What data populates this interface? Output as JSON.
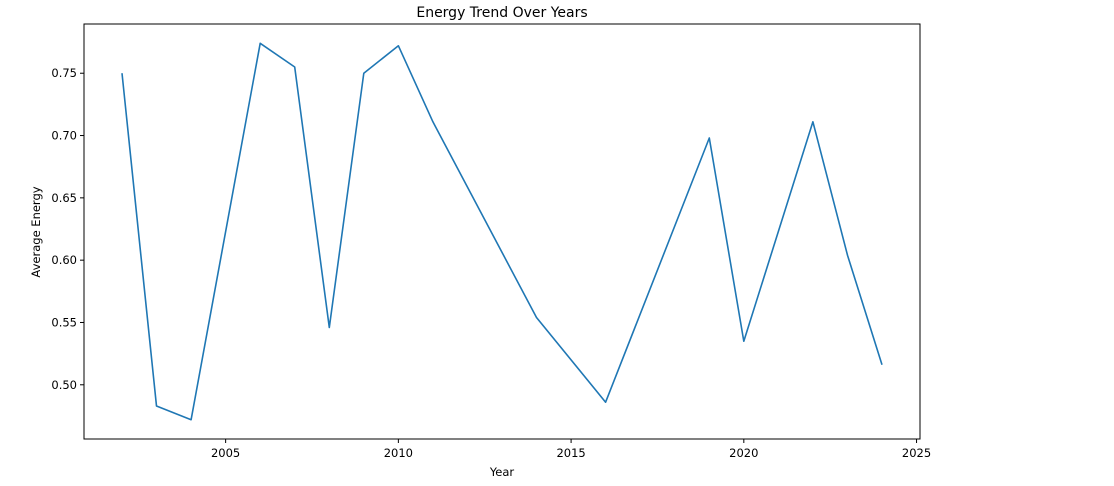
{
  "chart_data": {
    "type": "line",
    "title": "Energy Trend Over Years",
    "xlabel": "Year",
    "ylabel": "Average Energy",
    "xlim": [
      2000.9,
      2025.1
    ],
    "ylim": [
      0.4565,
      0.7895
    ],
    "x_ticks": [
      2005,
      2010,
      2015,
      2020,
      2025
    ],
    "y_ticks": [
      0.5,
      0.55,
      0.6,
      0.65,
      0.7,
      0.75
    ],
    "x_tick_labels": [
      "2005",
      "2010",
      "2015",
      "2020",
      "2025"
    ],
    "y_tick_labels": [
      "0.50",
      "0.55",
      "0.60",
      "0.65",
      "0.70",
      "0.75"
    ],
    "grid": false,
    "legend": "none",
    "series": [
      {
        "color": "#1f77b4",
        "x": [
          2002,
          2003,
          2004,
          2006,
          2007,
          2008,
          2009,
          2010,
          2011,
          2014,
          2016,
          2019,
          2020,
          2022,
          2023,
          2024
        ],
        "values": [
          0.75,
          0.483,
          0.472,
          0.774,
          0.755,
          0.546,
          0.75,
          0.772,
          0.711,
          0.554,
          0.486,
          0.698,
          0.535,
          0.711,
          0.604,
          0.516
        ]
      }
    ]
  }
}
